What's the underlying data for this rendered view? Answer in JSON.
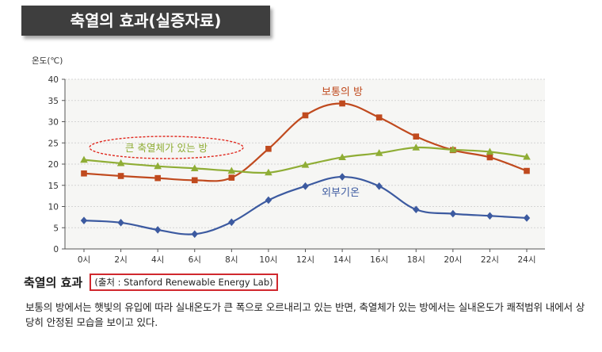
{
  "page_title": "축열의 효과(실증자료)",
  "chart_data": {
    "type": "line",
    "ylabel": "온도(℃)",
    "categories": [
      "0시",
      "2시",
      "4시",
      "6시",
      "8시",
      "10시",
      "12시",
      "14시",
      "16시",
      "18시",
      "20시",
      "22시",
      "24시"
    ],
    "ylim": [
      0,
      40
    ],
    "yticks": [
      0,
      5,
      10,
      15,
      20,
      25,
      30,
      35,
      40
    ],
    "grid": true,
    "series": [
      {
        "name": "보통의 방",
        "color": "#c04a1e",
        "marker": "square",
        "values": [
          17.8,
          17.2,
          16.7,
          16.2,
          16.8,
          23.6,
          31.5,
          34.3,
          31.0,
          26.5,
          23.3,
          21.6,
          18.4
        ]
      },
      {
        "name": "큰 축열체가 있는 방",
        "color": "#8fad35",
        "marker": "triangle",
        "values": [
          21.0,
          20.2,
          19.5,
          19.0,
          18.4,
          18.0,
          19.8,
          21.6,
          22.6,
          23.9,
          23.4,
          22.9,
          21.7
        ]
      },
      {
        "name": "외부기온",
        "color": "#3c5aa0",
        "marker": "diamond",
        "values": [
          6.7,
          6.2,
          4.5,
          3.5,
          6.3,
          11.5,
          14.8,
          17.0,
          14.8,
          9.3,
          8.3,
          7.8,
          7.3
        ]
      }
    ]
  },
  "caption": {
    "title": "축열의 효과",
    "source": "(출처 : Stanford Renewable Energy Lab)",
    "body": "보통의 방에서는 햇빛의 유입에 따라 실내온도가 큰 폭으로 오르내리고 있는 반면, 축열체가 있는 방에서는 실내온도가 쾌적범위 내에서 상당히 안정된 모습을 보이고 있다."
  }
}
